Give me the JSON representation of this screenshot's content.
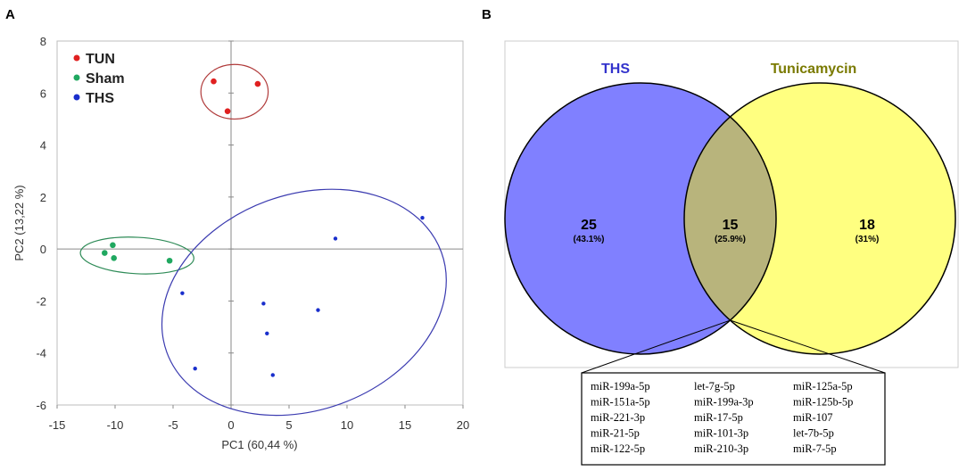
{
  "chart_data": [
    {
      "panel": "A",
      "type": "scatter",
      "xlabel": "PC1 (60,44 %)",
      "ylabel": "PC2 (13,22 %)",
      "xlim": [
        -15,
        20
      ],
      "ylim": [
        -6,
        8
      ],
      "xticks": [
        -15,
        -10,
        -5,
        0,
        5,
        10,
        15,
        20
      ],
      "yticks": [
        -6,
        -4,
        -2,
        0,
        2,
        4,
        6,
        8
      ],
      "legend_position": "top-left",
      "series": [
        {
          "name": "TUN",
          "color": "#e02020",
          "points": [
            [
              -1.5,
              6.45
            ],
            [
              2.3,
              6.35
            ],
            [
              -0.3,
              5.3
            ]
          ],
          "ellipse": {
            "cx": 0.3,
            "cy": 6.05,
            "rx": 2.9,
            "ry": 1.05,
            "angle": 0,
            "color": "#b03a3a"
          }
        },
        {
          "name": "Sham",
          "color": "#20a860",
          "points": [
            [
              -10.2,
              0.15
            ],
            [
              -10.9,
              -0.15
            ],
            [
              -10.1,
              -0.35
            ],
            [
              -5.3,
              -0.45
            ]
          ],
          "ellipse": {
            "cx": -8.1,
            "cy": -0.25,
            "rx": 4.9,
            "ry": 0.7,
            "angle": -3,
            "color": "#2e8b57"
          }
        },
        {
          "name": "THS",
          "color": "#1a2fcc",
          "points": [
            [
              16.5,
              1.2
            ],
            [
              9.0,
              0.4
            ],
            [
              -4.2,
              -1.7
            ],
            [
              2.8,
              -2.1
            ],
            [
              7.5,
              -2.35
            ],
            [
              3.1,
              -3.25
            ],
            [
              -3.1,
              -4.6
            ],
            [
              3.6,
              -4.85
            ]
          ],
          "ellipse": {
            "cx": 6.3,
            "cy": -2.05,
            "rx": 12.6,
            "ry": 4.15,
            "angle": 20,
            "color": "#3b3bb0"
          }
        }
      ]
    },
    {
      "panel": "B",
      "type": "venn",
      "sets": [
        {
          "name": "THS",
          "only_count": "25",
          "only_pct": "(43.1%)",
          "color": "#8080ff",
          "label_color": "#3333cc"
        },
        {
          "name": "Tunicamycin",
          "only_count": "18",
          "only_pct": "(31%)",
          "color": "#ffff80",
          "label_color": "#7a7a00"
        }
      ],
      "intersection": {
        "count": "15",
        "pct": "(25.9%)",
        "color": "#b8b47c",
        "mirnas": [
          [
            "miR-199a-5p",
            "let-7g-5p",
            "miR-125a-5p"
          ],
          [
            "miR-151a-5p",
            "miR-199a-3p",
            "miR-125b-5p"
          ],
          [
            "miR-221-3p",
            "miR-17-5p",
            "miR-107"
          ],
          [
            "miR-21-5p",
            "miR-101-3p",
            "let-7b-5p"
          ],
          [
            "miR-122-5p",
            "miR-210-3p",
            "miR-7-5p"
          ]
        ]
      }
    }
  ]
}
